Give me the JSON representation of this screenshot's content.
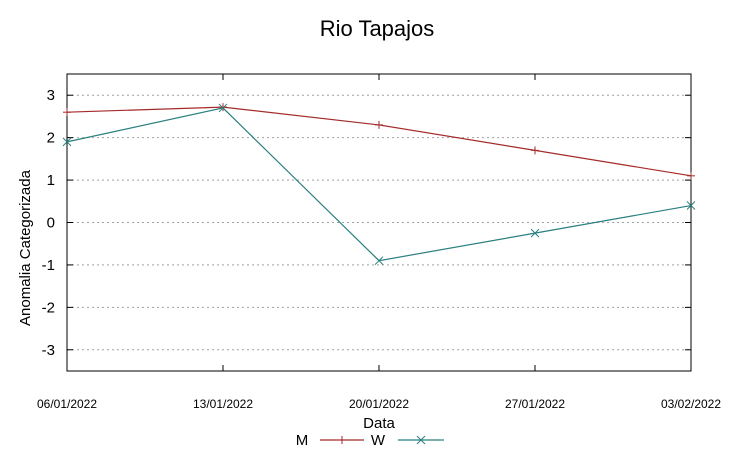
{
  "chart_data": {
    "type": "line",
    "title": "Rio Tapajos",
    "xlabel": "Data",
    "ylabel": "Anomalia Categorizada",
    "categories": [
      "06/01/2022",
      "13/01/2022",
      "20/01/2022",
      "27/01/2022",
      "03/02/2022"
    ],
    "yticks": [
      "3",
      "2",
      "1",
      "0",
      "-1",
      "-2",
      "-3"
    ],
    "ylim": [
      -3.5,
      3.5
    ],
    "grid": true,
    "legend_position": "bottom",
    "series": [
      {
        "name": "M",
        "color": "#a52a2a",
        "marker": "plus",
        "values": [
          2.6,
          2.72,
          2.3,
          1.7,
          1.1
        ]
      },
      {
        "name": "W",
        "color": "#2a7f7f",
        "marker": "cross",
        "values": [
          1.9,
          2.7,
          -0.9,
          -0.25,
          0.4
        ]
      }
    ]
  }
}
